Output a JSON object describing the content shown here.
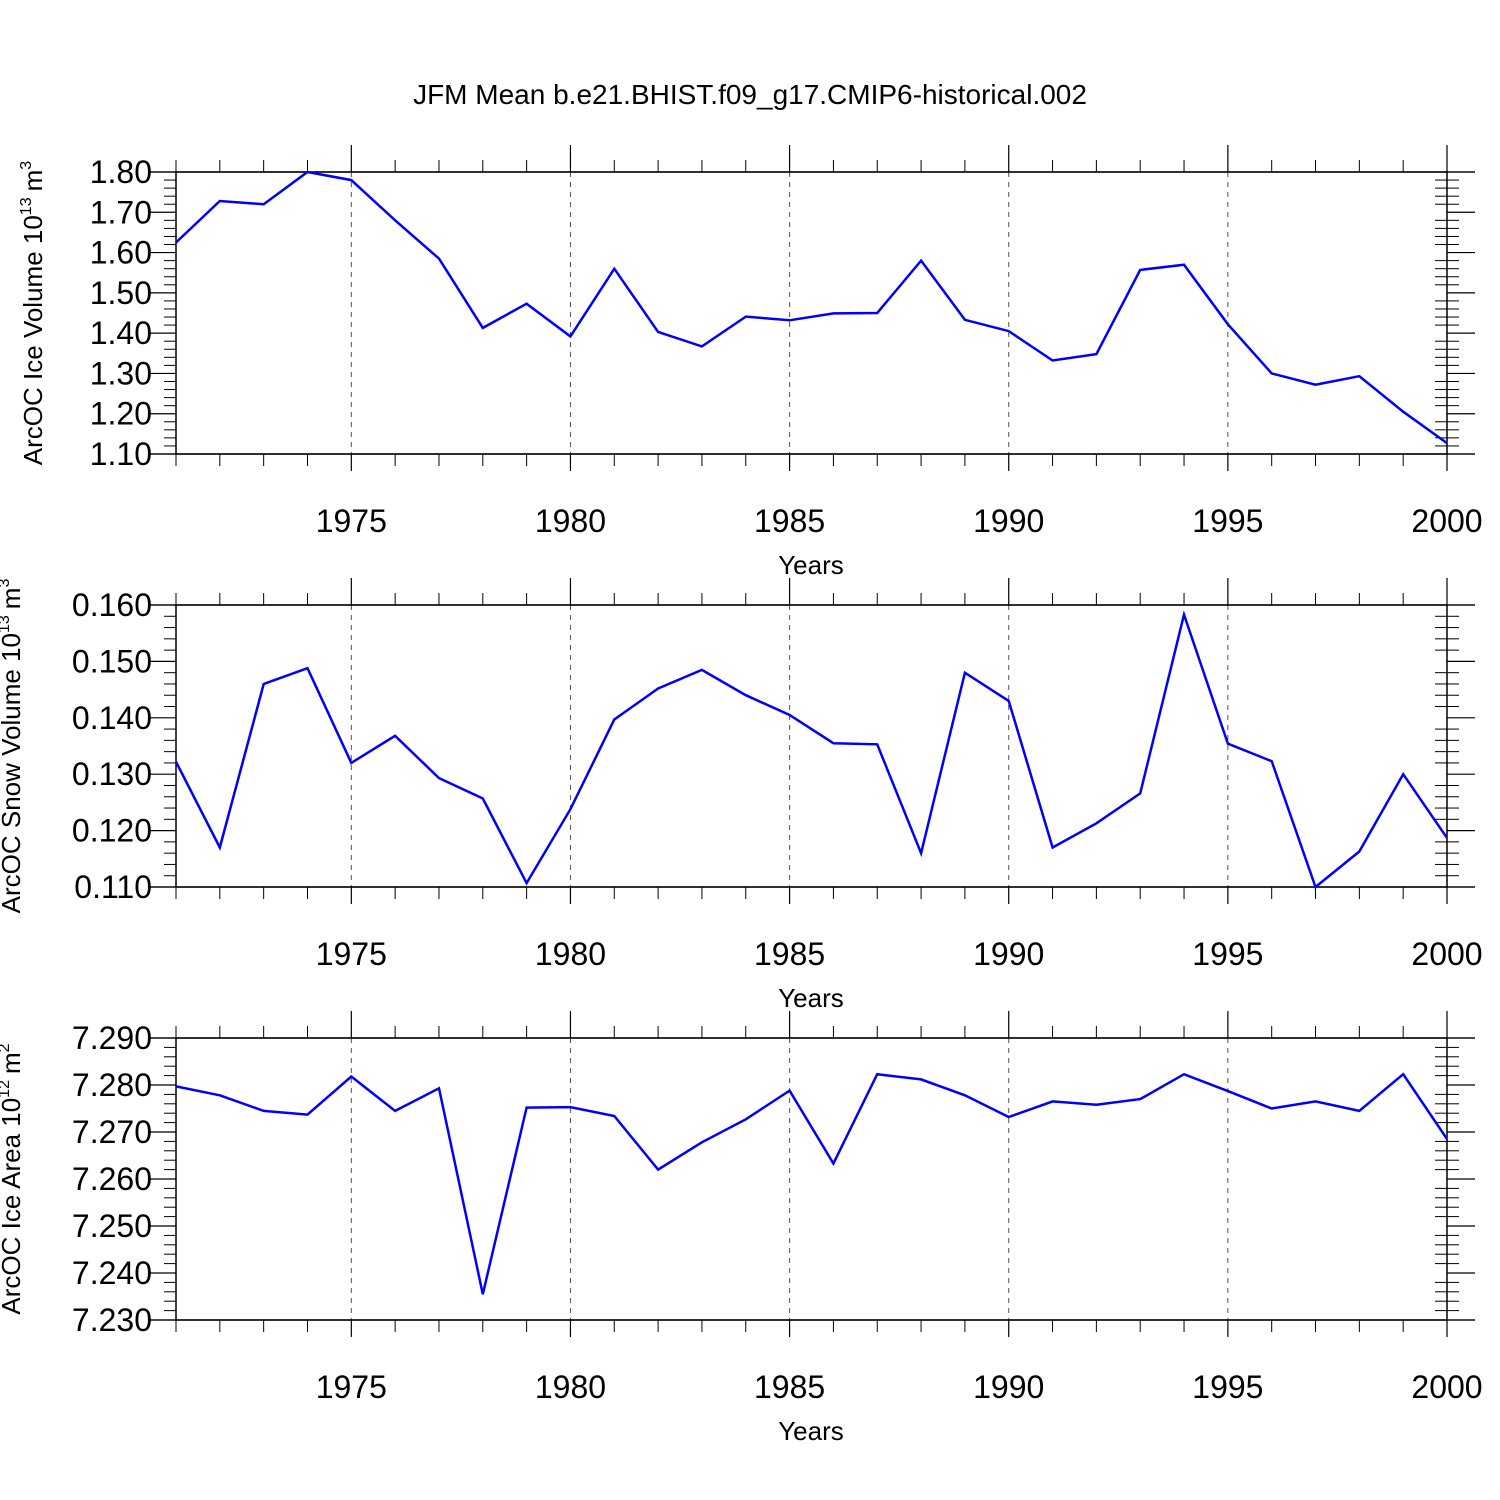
{
  "title": "JFM Mean b.e21.BHIST.f09_g17.CMIP6-historical.002",
  "line_color": "#0000ff",
  "chart_data": [
    {
      "type": "line",
      "ylabel": "ArcOC Ice Volume 10",
      "ylabel_exp": "13",
      "ylabel_unit": "m",
      "ylabel_unit_exp": "3",
      "xlabel": "Years",
      "xlim": [
        1971,
        2000
      ],
      "ylim": [
        1.1,
        1.8
      ],
      "yticks": [
        "1.80",
        "1.70",
        "1.60",
        "1.50",
        "1.40",
        "1.30",
        "1.20",
        "1.10"
      ],
      "xticks": [
        "1975",
        "1980",
        "1985",
        "1990",
        "1995",
        "2000"
      ],
      "grid": "vertical dashed at 1975, 1980, 1985, 1990, 1995",
      "x": [
        1971,
        1972,
        1973,
        1974,
        1975,
        1976,
        1977,
        1978,
        1979,
        1980,
        1981,
        1982,
        1983,
        1984,
        1985,
        1986,
        1987,
        1988,
        1989,
        1990,
        1991,
        1992,
        1993,
        1994,
        1995,
        1996,
        1997,
        1998,
        1999,
        2000
      ],
      "y": [
        1.625,
        1.728,
        1.72,
        1.8,
        1.78,
        1.68,
        1.585,
        1.413,
        1.473,
        1.392,
        1.56,
        1.403,
        1.367,
        1.441,
        1.432,
        1.449,
        1.45,
        1.58,
        1.433,
        1.405,
        1.332,
        1.348,
        1.557,
        1.57,
        1.422,
        1.3,
        1.272,
        1.293,
        1.205,
        1.127
      ]
    },
    {
      "type": "line",
      "ylabel": "ArcOC Snow Volume 10",
      "ylabel_exp": "13",
      "ylabel_unit": "m",
      "ylabel_unit_exp": "3",
      "xlabel": "Years",
      "xlim": [
        1971,
        2000
      ],
      "ylim": [
        0.11,
        0.16
      ],
      "yticks": [
        "0.160",
        "0.150",
        "0.140",
        "0.130",
        "0.120",
        "0.110"
      ],
      "xticks": [
        "1975",
        "1980",
        "1985",
        "1990",
        "1995",
        "2000"
      ],
      "grid": "vertical dashed at 1975, 1980, 1985, 1990, 1995",
      "x": [
        1971,
        1972,
        1973,
        1974,
        1975,
        1976,
        1977,
        1978,
        1979,
        1980,
        1981,
        1982,
        1983,
        1984,
        1985,
        1986,
        1987,
        1988,
        1989,
        1990,
        1991,
        1992,
        1993,
        1994,
        1995,
        1996,
        1997,
        1998,
        1999,
        2000
      ],
      "y": [
        0.1322,
        0.117,
        0.146,
        0.1488,
        0.132,
        0.1368,
        0.1293,
        0.1257,
        0.1107,
        0.1238,
        0.1397,
        0.1452,
        0.1485,
        0.144,
        0.1405,
        0.1355,
        0.1353,
        0.116,
        0.148,
        0.143,
        0.117,
        0.1213,
        0.1266,
        0.1583,
        0.1354,
        0.1323,
        0.11,
        0.1163,
        0.13,
        0.1187
      ]
    },
    {
      "type": "line",
      "ylabel": "ArcOC Ice Area 10",
      "ylabel_exp": "12",
      "ylabel_unit": "m",
      "ylabel_unit_exp": "2",
      "xlabel": "Years",
      "xlim": [
        1971,
        2000
      ],
      "ylim": [
        7.23,
        7.29
      ],
      "yticks": [
        "7.290",
        "7.280",
        "7.270",
        "7.260",
        "7.250",
        "7.240",
        "7.230"
      ],
      "xticks": [
        "1975",
        "1980",
        "1985",
        "1990",
        "1995",
        "2000"
      ],
      "grid": "vertical dashed at 1975, 1980, 1985, 1990, 1995",
      "x": [
        1971,
        1972,
        1973,
        1974,
        1975,
        1976,
        1977,
        1978,
        1979,
        1980,
        1981,
        1982,
        1983,
        1984,
        1985,
        1986,
        1987,
        1988,
        1989,
        1990,
        1991,
        1992,
        1993,
        1994,
        1995,
        1996,
        1997,
        1998,
        1999,
        2000
      ],
      "y": [
        7.2797,
        7.2778,
        7.2745,
        7.2737,
        7.2818,
        7.2745,
        7.2793,
        7.2355,
        7.2752,
        7.2753,
        7.2734,
        7.262,
        7.2678,
        7.2727,
        7.2788,
        7.2633,
        7.2823,
        7.2812,
        7.2778,
        7.2732,
        7.2765,
        7.2758,
        7.277,
        7.2823,
        7.2787,
        7.275,
        7.2765,
        7.2745,
        7.2823,
        7.2685
      ]
    }
  ]
}
